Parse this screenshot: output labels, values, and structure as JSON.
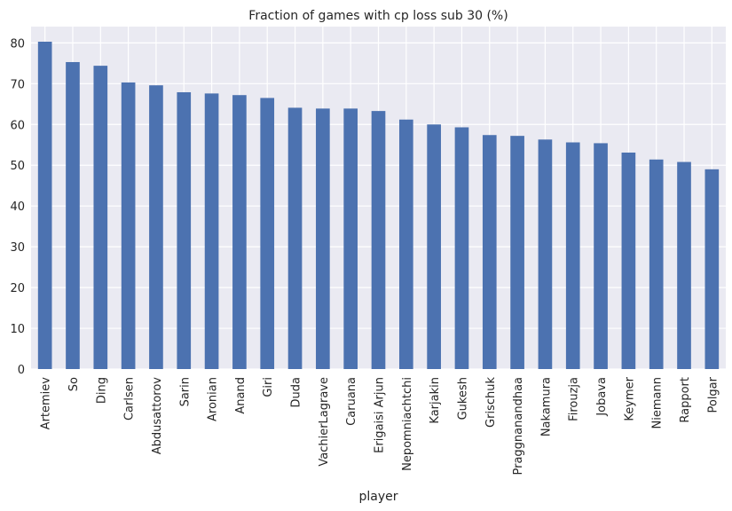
{
  "chart_data": {
    "type": "bar",
    "title": "Fraction of games with cp loss sub 30 (%)",
    "xlabel": "player",
    "ylabel": "",
    "ylim": [
      0,
      84
    ],
    "yticks": [
      0,
      10,
      20,
      30,
      40,
      50,
      60,
      70,
      80
    ],
    "grid": true,
    "bar_color": "#4c72b0",
    "background": "#eaeaf2",
    "categories": [
      "Artemiev",
      "So",
      "Ding",
      "Carlsen",
      "Abdusattorov",
      "Sarin",
      "Aronian",
      "Anand",
      "Giri",
      "Duda",
      "VachierLagrave",
      "Caruana",
      "Erigaisi Arjun",
      "Nepomniachtchi",
      "Karjakin",
      "Gukesh",
      "Grischuk",
      "Praggnanandhaa",
      "Nakamura",
      "Firouzja",
      "Jobava",
      "Keymer",
      "Niemann",
      "Rapport",
      "Polgar"
    ],
    "values": [
      80.3,
      75.3,
      74.4,
      70.3,
      69.6,
      67.9,
      67.6,
      67.2,
      66.5,
      64.1,
      63.9,
      63.9,
      63.3,
      61.2,
      60.0,
      59.3,
      57.4,
      57.2,
      56.3,
      55.6,
      55.4,
      53.1,
      51.4,
      50.8,
      49.0
    ]
  }
}
